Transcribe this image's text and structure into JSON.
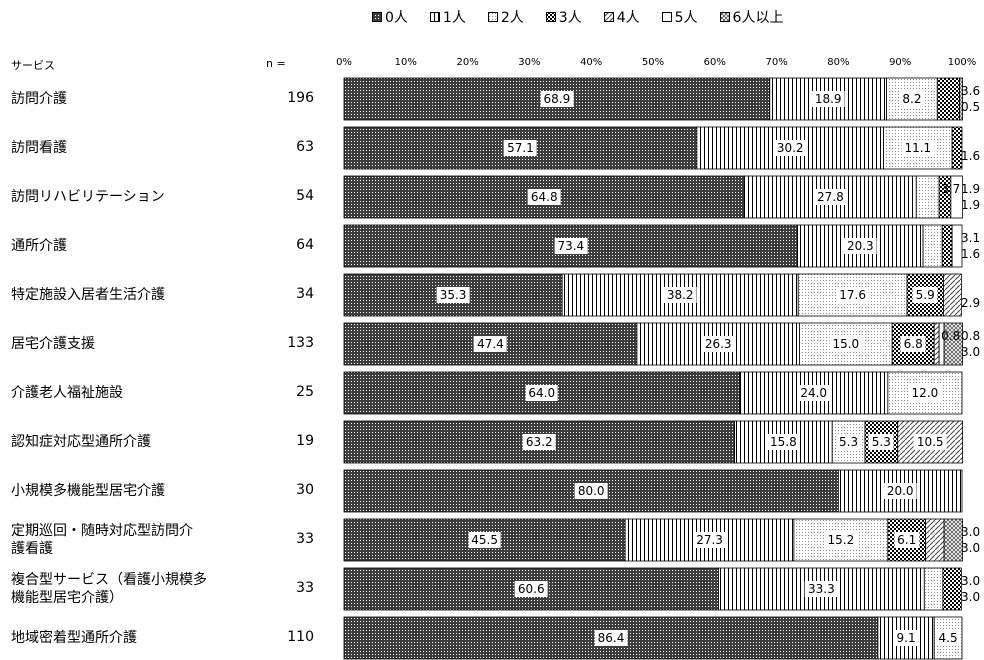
{
  "header": {
    "service_label": "サービス",
    "n_label": "n ="
  },
  "chart_data": {
    "type": "bar",
    "orientation": "horizontal",
    "stacked": true,
    "percent": true,
    "xlim": [
      0,
      100
    ],
    "x_ticks": [
      "0%",
      "10%",
      "20%",
      "30%",
      "40%",
      "50%",
      "60%",
      "70%",
      "80%",
      "90%",
      "100%"
    ],
    "legend_position": "top",
    "series": [
      {
        "name": "0人",
        "pattern": "dense-dots",
        "color": "#3a3a3a"
      },
      {
        "name": "1人",
        "pattern": "vertical-lines",
        "color": "#000000"
      },
      {
        "name": "2人",
        "pattern": "light-dots",
        "color": "#9a9a9a"
      },
      {
        "name": "3人",
        "pattern": "checker",
        "color": "#000000"
      },
      {
        "name": "4人",
        "pattern": "diagonal",
        "color": "#555555"
      },
      {
        "name": "5人",
        "pattern": "white",
        "color": "#ffffff"
      },
      {
        "name": "6人以上",
        "pattern": "crosshatch",
        "color": "#777777"
      }
    ],
    "categories": [
      {
        "label": "訪問介護",
        "n": "196",
        "values": [
          68.9,
          18.9,
          8.2,
          3.6,
          0,
          0,
          0.5
        ],
        "labels": [
          "68.9",
          "18.9",
          "8.2",
          "3.6",
          "",
          "",
          "0.5"
        ]
      },
      {
        "label": "訪問看護",
        "n": "63",
        "values": [
          57.1,
          30.2,
          11.1,
          1.6,
          0,
          0,
          0
        ],
        "labels": [
          "57.1",
          "30.2",
          "11.1",
          "1.6",
          "",
          "",
          ""
        ]
      },
      {
        "label": "訪問リハビリテーション",
        "n": "54",
        "values": [
          64.8,
          27.8,
          3.7,
          1.9,
          0,
          1.9,
          0
        ],
        "labels": [
          "64.8",
          "27.8",
          "3.7",
          "1.9",
          "",
          "1.9",
          ""
        ]
      },
      {
        "label": "通所介護",
        "n": "64",
        "values": [
          73.4,
          20.3,
          3.1,
          1.6,
          0,
          1.6,
          0
        ],
        "labels": [
          "73.4",
          "20.3",
          "3.1",
          "",
          "",
          "1.6",
          ""
        ]
      },
      {
        "label": "特定施設入居者生活介護",
        "n": "34",
        "values": [
          35.3,
          38.2,
          17.6,
          5.9,
          2.9,
          0,
          0
        ],
        "labels": [
          "35.3",
          "38.2",
          "17.6",
          "5.9",
          "2.9",
          "",
          ""
        ]
      },
      {
        "label": "居宅介護支援",
        "n": "133",
        "values": [
          47.4,
          26.3,
          15.0,
          6.8,
          0.8,
          0.8,
          3.0
        ],
        "labels": [
          "47.4",
          "26.3",
          "15.0",
          "6.8",
          "0.8",
          "0.8",
          "3.0"
        ]
      },
      {
        "label": "介護老人福祉施設",
        "n": "25",
        "values": [
          64.0,
          24.0,
          12.0,
          0,
          0,
          0,
          0
        ],
        "labels": [
          "64.0",
          "24.0",
          "12.0",
          "",
          "",
          "",
          ""
        ]
      },
      {
        "label": "認知症対応型通所介護",
        "n": "19",
        "values": [
          63.2,
          15.8,
          5.3,
          5.3,
          10.5,
          0,
          0
        ],
        "labels": [
          "63.2",
          "15.8",
          "5.3",
          "5.3",
          "10.5",
          "",
          ""
        ]
      },
      {
        "label": "小規模多機能型居宅介護",
        "n": "30",
        "values": [
          80.0,
          20.0,
          0,
          0,
          0,
          0,
          0
        ],
        "labels": [
          "80.0",
          "20.0",
          "",
          "",
          "",
          "",
          ""
        ]
      },
      {
        "label": "定期巡回・随時対応型訪問介\n護看護",
        "n": "33",
        "values": [
          45.5,
          27.3,
          15.2,
          6.1,
          3.0,
          0,
          3.0
        ],
        "labels": [
          "45.5",
          "27.3",
          "15.2",
          "6.1",
          "3.0",
          "",
          "3.0"
        ]
      },
      {
        "label": "複合型サービス（看護小規模多\n機能型居宅介護）",
        "n": "33",
        "values": [
          60.6,
          33.3,
          3.0,
          3.0,
          0,
          0,
          0
        ],
        "labels": [
          "60.6",
          "33.3",
          "3.0",
          "3.0",
          "",
          "",
          ""
        ]
      },
      {
        "label": "地域密着型通所介護",
        "n": "110",
        "values": [
          86.4,
          9.1,
          4.5,
          0,
          0,
          0,
          0
        ],
        "labels": [
          "86.4",
          "9.1",
          "4.5",
          "",
          "",
          "",
          ""
        ]
      }
    ]
  }
}
